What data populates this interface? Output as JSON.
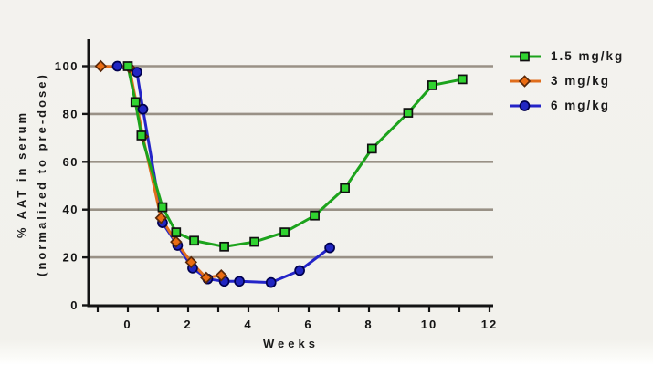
{
  "chart_data": {
    "type": "line",
    "title": "",
    "xlabel": "Weeks",
    "ylabel_line1": "% AAT in serum",
    "ylabel_line2": "(normalized to pre-dose)",
    "xlim": [
      -1.3,
      12.1
    ],
    "ylim": [
      0,
      110
    ],
    "xtick_labels": [
      0,
      2,
      4,
      6,
      8,
      10,
      12
    ],
    "xtick_minor": [
      -1,
      0,
      1,
      2,
      3,
      4,
      5,
      6,
      7,
      8,
      9,
      10,
      11,
      12
    ],
    "yticks": [
      0,
      20,
      40,
      60,
      80,
      100
    ],
    "gridlines_y": [
      20,
      40,
      60,
      80,
      100
    ],
    "grid": true,
    "legend_position": "right",
    "series": [
      {
        "name": "1.5 mg/kg",
        "marker": "square",
        "line_color": "#1ca31c",
        "marker_fill": "#30d330",
        "marker_edge": "#101010",
        "points": [
          [
            0,
            100
          ],
          [
            0.25,
            85
          ],
          [
            0.45,
            71
          ],
          [
            1.15,
            41
          ],
          [
            1.6,
            30.5
          ],
          [
            2.2,
            27
          ],
          [
            3.2,
            24.5
          ],
          [
            4.2,
            26.5
          ],
          [
            5.2,
            30.5
          ],
          [
            6.2,
            37.5
          ],
          [
            7.2,
            49
          ],
          [
            8.1,
            65.5
          ],
          [
            9.3,
            80.5
          ],
          [
            10.1,
            92
          ],
          [
            11.1,
            94.5
          ]
        ]
      },
      {
        "name": "3 mg/kg",
        "marker": "diamond",
        "line_color": "#e06d1c",
        "marker_fill": "#ea6c12",
        "marker_edge": "#58280a",
        "points": [
          [
            -0.9,
            100
          ],
          [
            0.05,
            99.5
          ],
          [
            0.5,
            70.5
          ],
          [
            1.1,
            36.5
          ],
          [
            1.6,
            26.5
          ],
          [
            2.1,
            18
          ],
          [
            2.6,
            11.5
          ],
          [
            3.1,
            12.5
          ]
        ]
      },
      {
        "name": "6 mg/kg",
        "marker": "circle",
        "line_color": "#2424c8",
        "marker_fill": "#2126c2",
        "marker_edge": "#00004e",
        "points": [
          [
            -0.35,
            100
          ],
          [
            0.3,
            97.5
          ],
          [
            0.5,
            82
          ],
          [
            1.15,
            34.5
          ],
          [
            1.65,
            25
          ],
          [
            2.15,
            15.5
          ],
          [
            2.65,
            11
          ],
          [
            3.2,
            10
          ],
          [
            3.7,
            10
          ],
          [
            4.75,
            9.5
          ],
          [
            5.7,
            14.5
          ],
          [
            6.7,
            24
          ]
        ]
      }
    ],
    "colors": {
      "gridline": "#999186",
      "axis": "#141414",
      "tick_text": "#141414",
      "background": "#f2f1ec"
    }
  }
}
